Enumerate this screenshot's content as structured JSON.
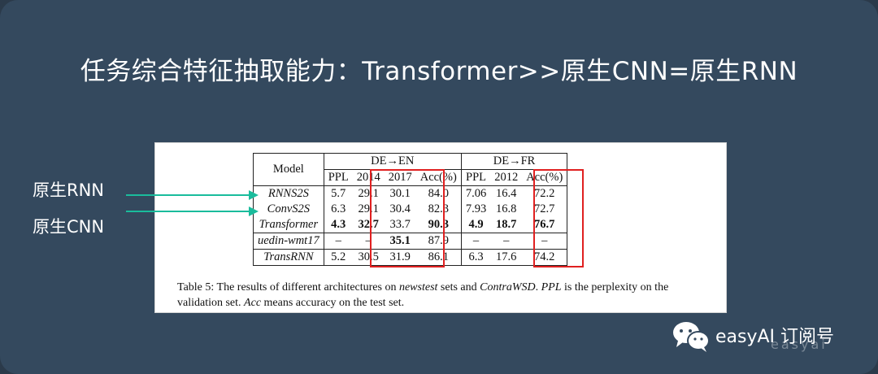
{
  "title": "任务综合特征抽取能力：Transformer>>原生CNN=原生RNN",
  "side_labels": {
    "rnn": "原生RNN",
    "cnn": "原生CNN"
  },
  "table": {
    "model_header": "Model",
    "group_de_en": "DE→EN",
    "group_de_fr": "DE→FR",
    "col_headers": [
      "PPL",
      "2014",
      "2017",
      "Acc(%)",
      "PPL",
      "2012",
      "Acc(%)"
    ],
    "rows": [
      {
        "model": "RNNS2S",
        "cells": [
          "5.7",
          "29.1",
          "30.1",
          "84.0",
          "7.06",
          "16.4",
          "72.2"
        ]
      },
      {
        "model": "ConvS2S",
        "cells": [
          "6.3",
          "29.1",
          "30.4",
          "82.3",
          "7.93",
          "16.8",
          "72.7"
        ]
      },
      {
        "model": "Transformer",
        "cells": [
          "4.3",
          "32.7",
          "33.7",
          "90.3",
          "4.9",
          "18.7",
          "76.7"
        ]
      },
      {
        "model": "uedin-wmt17",
        "cells": [
          "–",
          "–",
          "35.1",
          "87.9",
          "–",
          "–",
          "–"
        ]
      },
      {
        "model": "TransRNN",
        "cells": [
          "5.2",
          "30.5",
          "31.9",
          "86.1",
          "6.3",
          "17.6",
          "74.2"
        ]
      }
    ]
  },
  "caption": {
    "prefix": "Table 5:   The results of different architectures on ",
    "newstest": "newstest",
    "mid1": " sets and ",
    "contrawsd": "ContraWSD",
    "mid2": ". ",
    "ppl": "PPL",
    "mid3": " is the perplexity on the validation set. ",
    "acc": "Acc",
    "suffix": " means accuracy on the test set."
  },
  "brand": {
    "name": "easyAI 订阅号",
    "ghost": "easyai"
  },
  "colors": {
    "background": "#34495e",
    "arrow": "#1abc9c",
    "highlight_box": "#e02020"
  }
}
